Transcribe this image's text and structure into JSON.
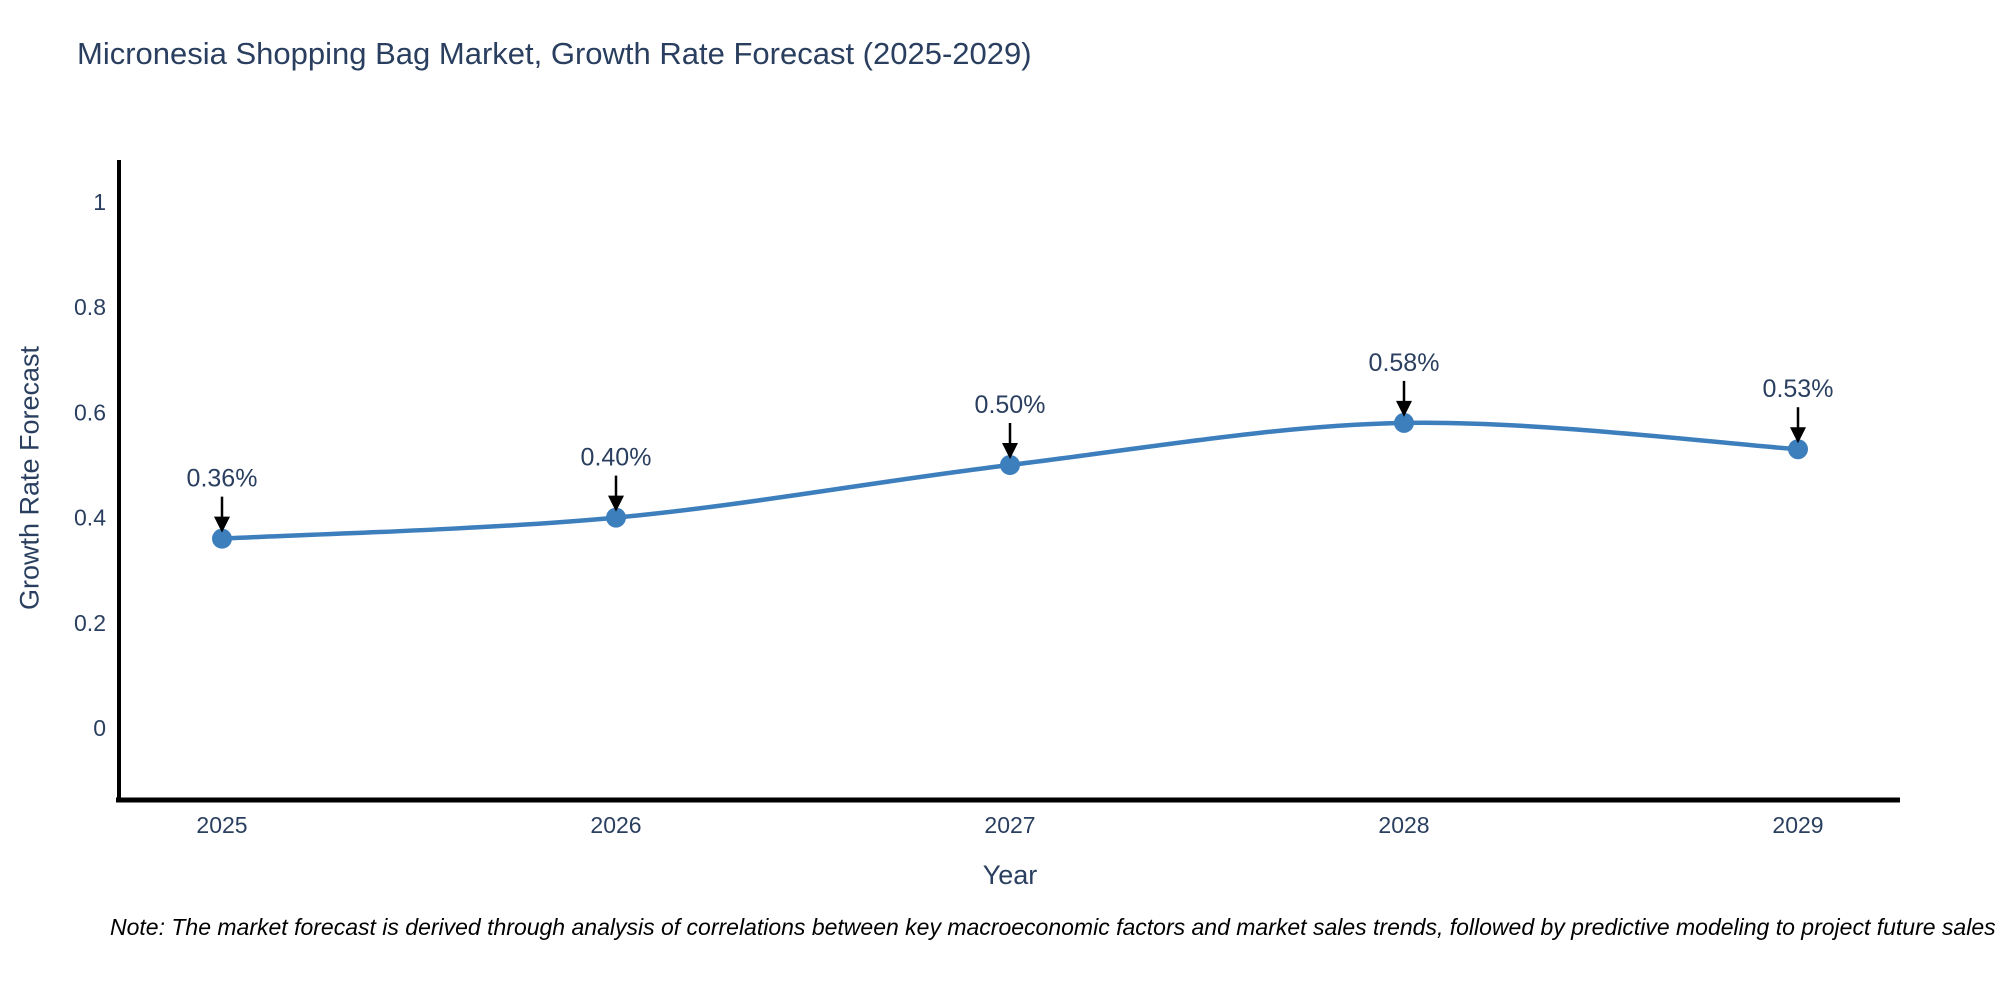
{
  "chart_data": {
    "type": "line",
    "title": "Micronesia Shopping Bag Market, Growth Rate Forecast (2025-2029)",
    "xlabel": "Year",
    "ylabel": "Growth Rate Forecast",
    "categories": [
      "2025",
      "2026",
      "2027",
      "2028",
      "2029"
    ],
    "values": [
      0.36,
      0.4,
      0.5,
      0.58,
      0.53
    ],
    "point_labels": [
      "0.36%",
      "0.40%",
      "0.50%",
      "0.58%",
      "0.53%"
    ],
    "ytick_values": [
      0,
      0.2,
      0.4,
      0.6,
      0.8,
      1
    ],
    "ytick_labels": [
      "0",
      "0.2",
      "0.4",
      "0.6",
      "0.8",
      "1"
    ],
    "ylim": [
      -0.137,
      1.08
    ],
    "grid": false,
    "legend": "none",
    "line_shape": "spline",
    "colors": {
      "line": "#3d7ebd",
      "marker": "#3d7ebd",
      "axis": "#000000",
      "text": "#2a3f5f",
      "annotation_arrow": "#000000",
      "background": "#ffffff"
    }
  },
  "note": "Note: The market forecast is derived through analysis of correlations between key macroeconomic factors and market sales trends, followed by predictive modeling to project future sales"
}
